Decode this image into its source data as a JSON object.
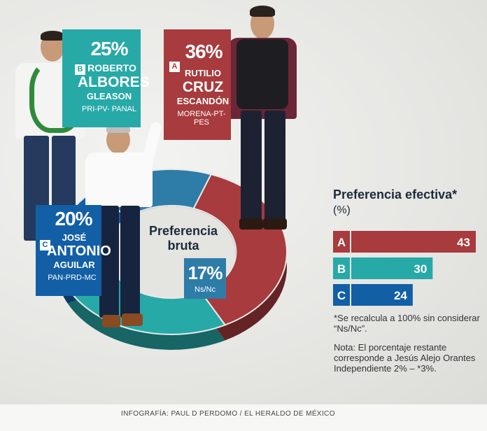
{
  "chart_data": [
    {
      "type": "pie",
      "title": "Preferencia bruta",
      "slices": [
        {
          "key": "A",
          "value": 36,
          "label": "36%",
          "color": "#a73b3d"
        },
        {
          "key": "B",
          "value": 25,
          "label": "25%",
          "color": "#27a9a8"
        },
        {
          "key": "C",
          "value": 20,
          "label": "20%",
          "color": "#125fa6"
        },
        {
          "key": "NS",
          "value": 17,
          "label": "17%",
          "color": "#2e7ca8"
        }
      ]
    },
    {
      "type": "bar",
      "title": "Preferencia efectiva*",
      "subtitle": "(%)",
      "categories": [
        "A",
        "B",
        "C"
      ],
      "values": [
        43,
        30,
        24
      ],
      "colors": [
        "#a73b3d",
        "#27a9a8",
        "#125fa6"
      ],
      "xlim": [
        0,
        43
      ]
    }
  ],
  "candidates": {
    "a": {
      "letter": "A",
      "pct": "36%",
      "name1": "RUTILIO",
      "name2": "CRUZ",
      "name3": "ESCANDÓN",
      "party": "MORENA-PT-PES"
    },
    "b": {
      "letter": "B",
      "pct": "25%",
      "name1": "ROBERTO",
      "name2": "ALBORES",
      "name3": "GLEASON",
      "party": "PRI-PV- PANAL"
    },
    "c": {
      "letter": "C",
      "pct": "20%",
      "name1": "JOSÉ",
      "name2": "ANTONIO",
      "name3": "AGUILAR",
      "party": "PAN-PRD-MC"
    },
    "ns": {
      "pct": "17%",
      "label": "Ns/Nc"
    }
  },
  "notes": {
    "recalc": "*Se recalcula a 100% sin considerar “Ns/Nc”.",
    "nota": "Nota: El porcentaje restante corresponde a Jesús Alejo Orantes Independiente 2% – *3%."
  },
  "credit": "INFOGRAFÍA: PAUL D PERDOMO / EL HERALDO DE MÉXICO"
}
